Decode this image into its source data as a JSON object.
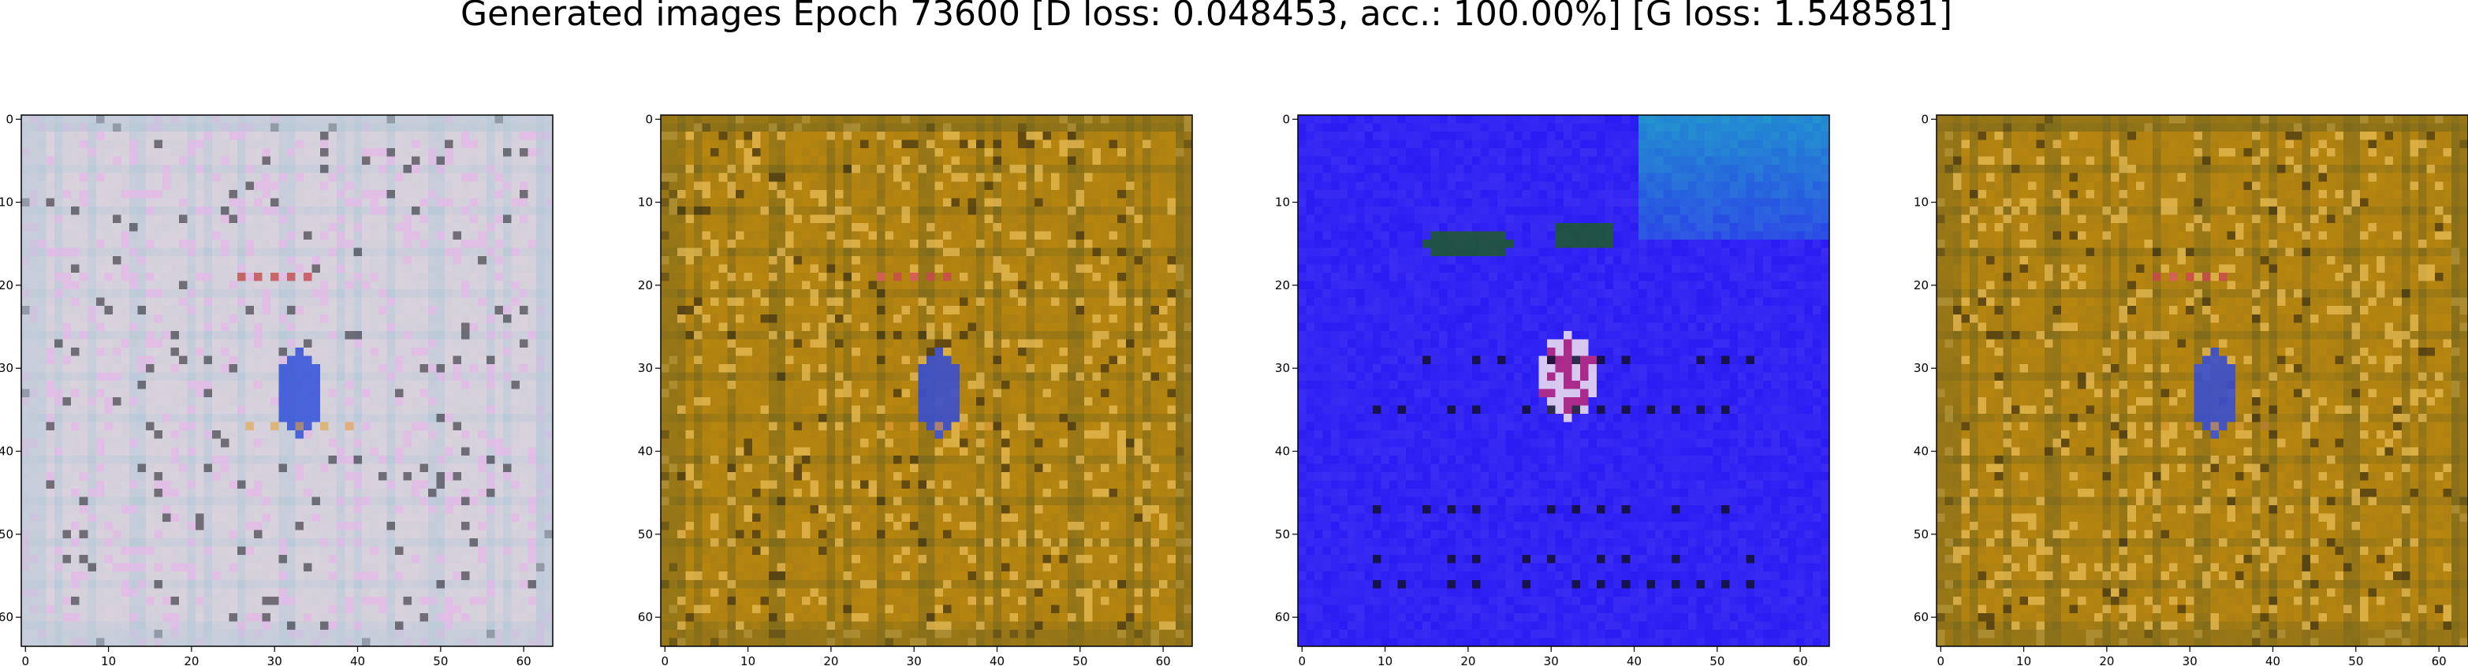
{
  "figure": {
    "title": "Generated images Epoch 73600 [D loss: 0.048453, acc.: 100.00%] [G loss: 1.548581]"
  },
  "chart_data": [
    {
      "type": "heatmap",
      "xlim": [
        0,
        63
      ],
      "ylim": [
        63,
        0
      ],
      "xticks": [
        0,
        10,
        20,
        30,
        40,
        50,
        60
      ],
      "yticks": [
        0,
        10,
        20,
        30,
        40,
        50,
        60
      ],
      "palette": {
        "base": "#d9d2dc",
        "stripe": "#b9c9d8",
        "mark": "#e8b8e8",
        "accent_blue": "#3a57d8",
        "accent_orange": "#e0a23a",
        "accent_red": "#c23a3a",
        "dark": "#2a2a34"
      }
    },
    {
      "type": "heatmap",
      "xlim": [
        0,
        63
      ],
      "ylim": [
        63,
        0
      ],
      "xticks": [
        0,
        10,
        20,
        30,
        40,
        50,
        60
      ],
      "yticks": [
        0,
        10,
        20,
        30,
        40,
        50,
        60
      ],
      "palette": {
        "base": "#b8860f",
        "stripe": "#7d6a1c",
        "mark": "#f0c25a",
        "accent_blue": "#3a4fd0",
        "accent_orange": "#e8a040",
        "accent_red": "#d0405a",
        "dark": "#2a2212"
      }
    },
    {
      "type": "heatmap",
      "xlim": [
        0,
        63
      ],
      "ylim": [
        63,
        0
      ],
      "xticks": [
        0,
        10,
        20,
        30,
        40,
        50,
        60
      ],
      "yticks": [
        0,
        10,
        20,
        30,
        40,
        50,
        60
      ],
      "palette": {
        "base": "#2a1cf2",
        "stripe": "#3a2cf4",
        "mark": "#6a5cf8",
        "accent_blue": "#1fa8c8",
        "accent_orange": "#f0c060",
        "accent_red": "#e03060",
        "dark": "#101030"
      }
    },
    {
      "type": "heatmap",
      "xlim": [
        0,
        63
      ],
      "ylim": [
        63,
        0
      ],
      "xticks": [
        0,
        10,
        20,
        30,
        40,
        50,
        60
      ],
      "yticks": [
        0,
        10,
        20,
        30,
        40,
        50,
        60
      ],
      "palette": {
        "base": "#b8860f",
        "stripe": "#7d6a1c",
        "mark": "#f0c25a",
        "accent_blue": "#3a4fd0",
        "accent_orange": "#e8a040",
        "accent_red": "#d0405a",
        "dark": "#2a2212"
      }
    }
  ]
}
